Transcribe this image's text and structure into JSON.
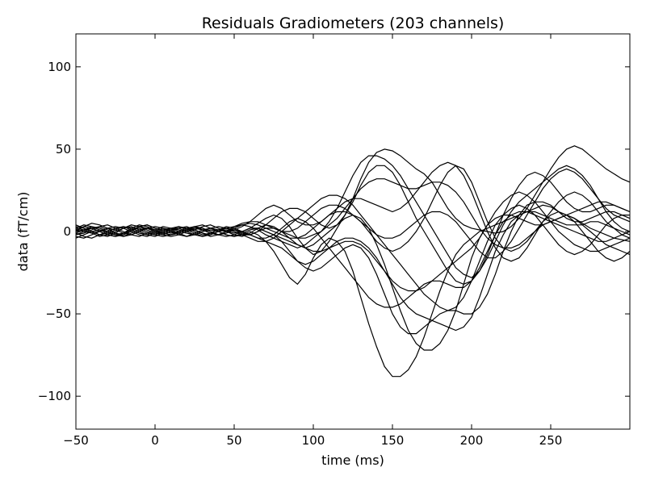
{
  "chart_data": {
    "type": "line",
    "title": "Residuals Gradiometers (203 channels)",
    "xlabel": "time (ms)",
    "ylabel": "data (fT/cm)",
    "xlim": [
      -50,
      300
    ],
    "ylim": [
      -120,
      120
    ],
    "xticks": [
      -50,
      0,
      50,
      100,
      150,
      200,
      250
    ],
    "xtick_labels": [
      "−50",
      "0",
      "50",
      "100",
      "150",
      "200",
      "250"
    ],
    "yticks": [
      -100,
      -50,
      0,
      50,
      100
    ],
    "ytick_labels": [
      "−100",
      "−50",
      "0",
      "50",
      "100"
    ],
    "grid": false,
    "line_color": "#000000",
    "n_series": 203,
    "x": [
      -50,
      -45,
      -40,
      -35,
      -30,
      -25,
      -20,
      -15,
      -10,
      -5,
      0,
      5,
      10,
      15,
      20,
      25,
      30,
      35,
      40,
      45,
      50,
      55,
      60,
      65,
      70,
      75,
      80,
      85,
      90,
      95,
      100,
      105,
      110,
      115,
      120,
      125,
      130,
      135,
      140,
      145,
      150,
      155,
      160,
      165,
      170,
      175,
      180,
      185,
      190,
      195,
      200,
      205,
      210,
      215,
      220,
      225,
      230,
      235,
      240,
      245,
      250,
      255,
      260,
      265,
      270,
      275,
      280,
      285,
      290,
      295,
      300
    ],
    "series": [
      {
        "values": [
          0,
          3,
          5,
          4,
          2,
          -1,
          -2,
          0,
          3,
          4,
          2,
          1,
          0,
          -2,
          -3,
          -1,
          1,
          2,
          1,
          0,
          -1,
          0,
          2,
          5,
          8,
          10,
          8,
          3,
          -4,
          -10,
          -14,
          -12,
          -6,
          2,
          10,
          20,
          32,
          42,
          48,
          50,
          49,
          46,
          42,
          38,
          35,
          30,
          22,
          14,
          8,
          4,
          2,
          1,
          0,
          -1,
          0,
          3,
          8,
          14,
          22,
          30,
          38,
          45,
          50,
          52,
          50,
          46,
          42,
          38,
          35,
          32,
          30
        ]
      },
      {
        "values": [
          -2,
          -1,
          1,
          3,
          4,
          2,
          0,
          -2,
          -3,
          -1,
          1,
          3,
          2,
          0,
          -1,
          -2,
          0,
          1,
          0,
          -2,
          -3,
          -2,
          0,
          -2,
          -6,
          -12,
          -20,
          -28,
          -32,
          -26,
          -16,
          -8,
          -4,
          -6,
          -12,
          -24,
          -40,
          -56,
          -70,
          -82,
          -88,
          -88,
          -84,
          -76,
          -64,
          -50,
          -36,
          -24,
          -14,
          -8,
          -4,
          0,
          2,
          4,
          6,
          8,
          10,
          12,
          14,
          16,
          15,
          12,
          10,
          8,
          5,
          2,
          0,
          -2,
          -4,
          -5,
          -6
        ]
      },
      {
        "values": [
          3,
          2,
          0,
          -2,
          -3,
          -1,
          2,
          4,
          3,
          1,
          -1,
          -2,
          0,
          2,
          3,
          1,
          -1,
          -2,
          0,
          2,
          3,
          4,
          3,
          1,
          -2,
          -4,
          -6,
          -8,
          -10,
          -8,
          -4,
          0,
          6,
          14,
          24,
          34,
          42,
          46,
          46,
          44,
          40,
          34,
          26,
          18,
          10,
          2,
          -6,
          -14,
          -22,
          -26,
          -28,
          -24,
          -16,
          -6,
          4,
          12,
          18,
          22,
          26,
          30,
          34,
          38,
          40,
          38,
          34,
          28,
          20,
          12,
          6,
          2,
          0
        ]
      },
      {
        "values": [
          1,
          0,
          -1,
          0,
          2,
          3,
          2,
          0,
          -2,
          -3,
          -1,
          1,
          2,
          1,
          0,
          1,
          3,
          4,
          2,
          0,
          -2,
          -3,
          -1,
          2,
          4,
          3,
          0,
          -4,
          -8,
          -10,
          -8,
          -4,
          0,
          4,
          8,
          10,
          8,
          2,
          -8,
          -20,
          -34,
          -48,
          -60,
          -68,
          -72,
          -72,
          -68,
          -60,
          -48,
          -32,
          -16,
          -4,
          4,
          8,
          10,
          10,
          8,
          6,
          4,
          4,
          6,
          8,
          10,
          8,
          4,
          0,
          -4,
          -8,
          -10,
          -12,
          -14
        ]
      },
      {
        "values": [
          -3,
          -4,
          -2,
          0,
          2,
          1,
          -1,
          -2,
          0,
          2,
          3,
          2,
          0,
          -1,
          1,
          3,
          2,
          0,
          -2,
          -1,
          1,
          3,
          6,
          10,
          14,
          16,
          14,
          10,
          6,
          4,
          4,
          6,
          10,
          14,
          18,
          20,
          20,
          18,
          16,
          14,
          12,
          14,
          18,
          24,
          30,
          36,
          40,
          42,
          40,
          34,
          24,
          12,
          0,
          -10,
          -16,
          -18,
          -16,
          -10,
          -2,
          6,
          12,
          18,
          22,
          24,
          22,
          18,
          12,
          6,
          2,
          -2,
          -4
        ]
      },
      {
        "values": [
          2,
          4,
          3,
          1,
          -1,
          -2,
          -1,
          1,
          2,
          0,
          -2,
          -3,
          -2,
          0,
          2,
          1,
          -1,
          -3,
          -2,
          0,
          1,
          0,
          -2,
          -4,
          -6,
          -8,
          -10,
          -14,
          -18,
          -22,
          -24,
          -22,
          -18,
          -14,
          -10,
          -8,
          -10,
          -16,
          -26,
          -38,
          -50,
          -58,
          -62,
          -62,
          -58,
          -54,
          -50,
          -48,
          -48,
          -50,
          -50,
          -46,
          -38,
          -26,
          -12,
          0,
          10,
          16,
          18,
          18,
          16,
          12,
          8,
          6,
          6,
          8,
          10,
          12,
          12,
          10,
          8
        ]
      },
      {
        "values": [
          0,
          1,
          2,
          0,
          -2,
          -3,
          -2,
          1,
          3,
          4,
          2,
          0,
          -1,
          0,
          2,
          3,
          1,
          -1,
          -2,
          0,
          2,
          4,
          5,
          4,
          2,
          0,
          -2,
          -4,
          -4,
          -2,
          2,
          6,
          10,
          12,
          12,
          10,
          6,
          0,
          -6,
          -10,
          -12,
          -10,
          -6,
          0,
          8,
          18,
          28,
          36,
          40,
          38,
          30,
          18,
          6,
          -4,
          -10,
          -12,
          -10,
          -6,
          0,
          6,
          10,
          12,
          10,
          6,
          0,
          -6,
          -12,
          -16,
          -18,
          -16,
          -12
        ]
      },
      {
        "values": [
          -1,
          -3,
          -4,
          -2,
          0,
          2,
          3,
          1,
          -1,
          -2,
          0,
          2,
          1,
          -1,
          -3,
          -2,
          0,
          2,
          3,
          2,
          0,
          -2,
          -4,
          -6,
          -6,
          -4,
          0,
          4,
          8,
          12,
          16,
          20,
          22,
          22,
          20,
          16,
          10,
          4,
          -2,
          -8,
          -14,
          -20,
          -26,
          -32,
          -38,
          -42,
          -46,
          -48,
          -46,
          -40,
          -30,
          -18,
          -6,
          4,
          10,
          14,
          16,
          14,
          10,
          4,
          -2,
          -8,
          -12,
          -14,
          -12,
          -8,
          -2,
          4,
          8,
          10,
          10
        ]
      },
      {
        "values": [
          4,
          2,
          0,
          -2,
          -1,
          1,
          3,
          2,
          0,
          -2,
          -3,
          -1,
          1,
          3,
          2,
          0,
          -2,
          -1,
          1,
          2,
          1,
          -1,
          -2,
          0,
          2,
          2,
          0,
          -2,
          -4,
          -4,
          -2,
          0,
          4,
          8,
          14,
          20,
          26,
          30,
          32,
          32,
          30,
          28,
          26,
          26,
          28,
          30,
          30,
          28,
          24,
          18,
          10,
          2,
          -4,
          -8,
          -10,
          -10,
          -8,
          -4,
          0,
          4,
          6,
          8,
          10,
          12,
          14,
          16,
          18,
          18,
          16,
          14,
          12
        ]
      },
      {
        "values": [
          -2,
          0,
          2,
          3,
          1,
          -1,
          -3,
          -2,
          0,
          2,
          1,
          -1,
          -2,
          -1,
          1,
          3,
          4,
          2,
          0,
          -2,
          -3,
          -1,
          1,
          2,
          0,
          -2,
          -6,
          -12,
          -18,
          -20,
          -18,
          -14,
          -10,
          -6,
          -4,
          -4,
          -6,
          -10,
          -16,
          -24,
          -32,
          -40,
          -46,
          -50,
          -52,
          -54,
          -56,
          -58,
          -60,
          -58,
          -52,
          -40,
          -26,
          -12,
          -2,
          6,
          10,
          12,
          12,
          10,
          8,
          6,
          4,
          4,
          4,
          6,
          6,
          4,
          2,
          0,
          -2
        ]
      },
      {
        "values": [
          1,
          3,
          2,
          0,
          -2,
          -3,
          -1,
          2,
          4,
          3,
          1,
          -1,
          -2,
          -1,
          1,
          2,
          1,
          -1,
          -2,
          0,
          3,
          5,
          6,
          6,
          4,
          2,
          0,
          0,
          2,
          6,
          10,
          14,
          16,
          16,
          14,
          10,
          6,
          2,
          -2,
          -4,
          -4,
          -2,
          2,
          6,
          10,
          12,
          12,
          10,
          6,
          0,
          -6,
          -12,
          -16,
          -16,
          -12,
          -6,
          2,
          10,
          18,
          26,
          32,
          36,
          38,
          36,
          32,
          26,
          20,
          14,
          10,
          8,
          6
        ]
      },
      {
        "values": [
          -4,
          -2,
          0,
          1,
          0,
          -2,
          -1,
          1,
          3,
          2,
          0,
          -2,
          -3,
          -2,
          0,
          2,
          2,
          0,
          -2,
          -3,
          -2,
          0,
          2,
          2,
          0,
          -2,
          -4,
          -6,
          -8,
          -10,
          -12,
          -12,
          -10,
          -8,
          -6,
          -6,
          -8,
          -12,
          -18,
          -24,
          -30,
          -34,
          -36,
          -36,
          -34,
          -30,
          -26,
          -22,
          -18,
          -14,
          -10,
          -4,
          4,
          12,
          18,
          22,
          24,
          22,
          18,
          12,
          6,
          0,
          -4,
          -8,
          -10,
          -12,
          -12,
          -10,
          -8,
          -6,
          -4
        ]
      },
      {
        "values": [
          2,
          1,
          -1,
          -3,
          -2,
          0,
          2,
          3,
          1,
          -1,
          -2,
          0,
          2,
          3,
          1,
          -1,
          -3,
          -2,
          0,
          1,
          0,
          -2,
          -2,
          0,
          4,
          8,
          12,
          14,
          14,
          12,
          8,
          4,
          2,
          4,
          10,
          18,
          28,
          36,
          40,
          40,
          36,
          28,
          18,
          8,
          0,
          -8,
          -16,
          -24,
          -30,
          -32,
          -30,
          -24,
          -14,
          -2,
          10,
          20,
          28,
          34,
          36,
          34,
          30,
          24,
          18,
          14,
          12,
          12,
          14,
          16,
          16,
          14,
          12
        ]
      },
      {
        "values": [
          -1,
          1,
          3,
          2,
          0,
          -2,
          -3,
          -1,
          1,
          2,
          0,
          -1,
          1,
          2,
          0,
          -2,
          -3,
          -1,
          1,
          3,
          2,
          0,
          -2,
          -4,
          -4,
          -2,
          2,
          6,
          8,
          6,
          2,
          -4,
          -10,
          -16,
          -22,
          -28,
          -34,
          -40,
          -44,
          -46,
          -46,
          -44,
          -40,
          -36,
          -32,
          -30,
          -30,
          -32,
          -34,
          -34,
          -30,
          -22,
          -12,
          -2,
          6,
          10,
          12,
          12,
          10,
          8,
          6,
          4,
          2,
          0,
          -2,
          -4,
          -6,
          -6,
          -4,
          -2,
          0
        ]
      }
    ]
  }
}
